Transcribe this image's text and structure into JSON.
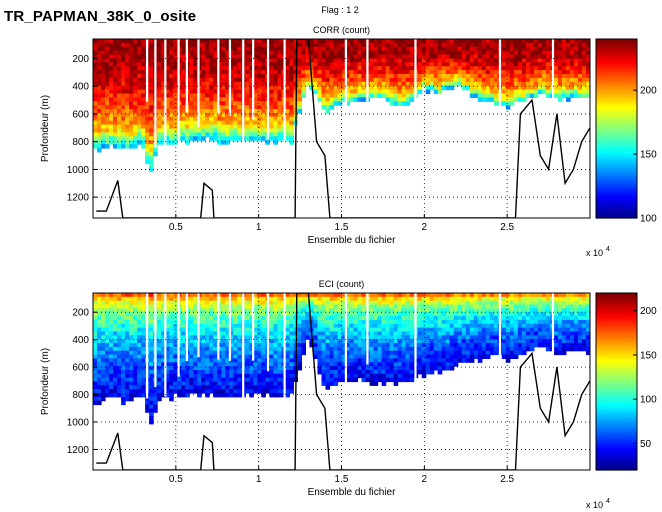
{
  "page": {
    "main_title": "TR_PAPMAN_38K_0_osite",
    "flag_label": "Flag : 1 2"
  },
  "chart_data": [
    {
      "type": "heatmap",
      "title": "CORR (count)",
      "xlabel": "Ensemble du fichier",
      "ylabel": "Profondeur (m)",
      "x_exponent_label": "x 10",
      "x_exponent": "4",
      "xlim": [
        0,
        30000
      ],
      "ylim": [
        1350,
        60
      ],
      "y_reversed": true,
      "xticks": [
        5000,
        10000,
        15000,
        20000,
        25000
      ],
      "xtick_labels": [
        "0.5",
        "1",
        "1.5",
        "2",
        "2.5"
      ],
      "yticks": [
        200,
        400,
        600,
        800,
        1000,
        1200
      ],
      "ytick_labels": [
        "200",
        "400",
        "600",
        "800",
        "1000",
        "1200"
      ],
      "grid": "dotted",
      "colorbar": {
        "colormap": "jet",
        "range": [
          100,
          240
        ],
        "ticks": [
          100,
          150,
          200
        ],
        "tick_labels": [
          "100",
          "150",
          "200"
        ]
      },
      "signal_bottom_m": [
        [
          0,
          870
        ],
        [
          1000,
          820
        ],
        [
          2000,
          840
        ],
        [
          3000,
          830
        ],
        [
          3500,
          1020
        ],
        [
          4000,
          830
        ],
        [
          5000,
          800
        ],
        [
          6000,
          780
        ],
        [
          7000,
          790
        ],
        [
          8000,
          800
        ],
        [
          9000,
          780
        ],
        [
          10000,
          790
        ],
        [
          11000,
          800
        ],
        [
          12000,
          790
        ],
        [
          13000,
          380
        ],
        [
          14000,
          600
        ],
        [
          15000,
          520
        ],
        [
          16000,
          500
        ],
        [
          17000,
          470
        ],
        [
          18000,
          520
        ],
        [
          19000,
          550
        ],
        [
          20000,
          420
        ],
        [
          21000,
          460
        ],
        [
          22000,
          380
        ],
        [
          23000,
          480
        ],
        [
          24000,
          520
        ],
        [
          25000,
          550
        ],
        [
          26000,
          500
        ],
        [
          27000,
          450
        ],
        [
          28000,
          500
        ],
        [
          29000,
          480
        ],
        [
          30000,
          500
        ]
      ],
      "seafloor_m": [
        [
          200,
          1300
        ],
        [
          800,
          1300
        ],
        [
          1500,
          1080
        ],
        [
          1800,
          1350
        ],
        [
          6500,
          1350
        ],
        [
          6700,
          1100
        ],
        [
          7200,
          1150
        ],
        [
          7300,
          1350
        ],
        [
          12200,
          1350
        ],
        [
          12300,
          60
        ],
        [
          13000,
          60
        ],
        [
          13500,
          800
        ],
        [
          14000,
          900
        ],
        [
          14300,
          1350
        ],
        [
          25500,
          1350
        ],
        [
          25800,
          600
        ],
        [
          26500,
          500
        ],
        [
          27000,
          900
        ],
        [
          27500,
          1000
        ],
        [
          28000,
          600
        ],
        [
          28500,
          1100
        ],
        [
          29000,
          1000
        ],
        [
          29500,
          800
        ],
        [
          30000,
          700
        ]
      ]
    },
    {
      "type": "heatmap",
      "title": "ECI (count)",
      "xlabel": "Ensemble du fichier",
      "ylabel": "Profondeur (m)",
      "x_exponent_label": "x 10",
      "x_exponent": "4",
      "xlim": [
        0,
        30000
      ],
      "ylim": [
        1350,
        60
      ],
      "y_reversed": true,
      "xticks": [
        5000,
        10000,
        15000,
        20000,
        25000
      ],
      "xtick_labels": [
        "0.5",
        "1",
        "1.5",
        "2",
        "2.5"
      ],
      "yticks": [
        200,
        400,
        600,
        800,
        1000,
        1200
      ],
      "ytick_labels": [
        "200",
        "400",
        "600",
        "800",
        "1000",
        "1200"
      ],
      "grid": "dotted",
      "colorbar": {
        "colormap": "jet",
        "range": [
          20,
          220
        ],
        "ticks": [
          50,
          100,
          150,
          200
        ],
        "tick_labels": [
          "50",
          "100",
          "150",
          "200"
        ]
      },
      "signal_bottom_m": [
        [
          0,
          870
        ],
        [
          1000,
          830
        ],
        [
          2000,
          850
        ],
        [
          3000,
          830
        ],
        [
          3500,
          1020
        ],
        [
          4000,
          830
        ],
        [
          5000,
          820
        ],
        [
          6000,
          800
        ],
        [
          7000,
          800
        ],
        [
          8000,
          810
        ],
        [
          9000,
          800
        ],
        [
          10000,
          800
        ],
        [
          11000,
          810
        ],
        [
          12000,
          800
        ],
        [
          13000,
          400
        ],
        [
          14000,
          750
        ],
        [
          15000,
          720
        ],
        [
          16000,
          700
        ],
        [
          17000,
          720
        ],
        [
          18000,
          700
        ],
        [
          19000,
          720
        ],
        [
          20000,
          650
        ],
        [
          21000,
          620
        ],
        [
          22000,
          600
        ],
        [
          23000,
          560
        ],
        [
          24000,
          520
        ],
        [
          25000,
          550
        ],
        [
          26000,
          500
        ],
        [
          27000,
          450
        ],
        [
          28000,
          500
        ],
        [
          29000,
          480
        ],
        [
          30000,
          500
        ]
      ],
      "seafloor_m": [
        [
          200,
          1300
        ],
        [
          800,
          1300
        ],
        [
          1500,
          1080
        ],
        [
          1800,
          1350
        ],
        [
          6500,
          1350
        ],
        [
          6700,
          1100
        ],
        [
          7200,
          1150
        ],
        [
          7300,
          1350
        ],
        [
          12200,
          1350
        ],
        [
          12300,
          60
        ],
        [
          13000,
          60
        ],
        [
          13500,
          800
        ],
        [
          14000,
          900
        ],
        [
          14300,
          1350
        ],
        [
          25500,
          1350
        ],
        [
          25800,
          600
        ],
        [
          26500,
          500
        ],
        [
          27000,
          900
        ],
        [
          27500,
          1000
        ],
        [
          28000,
          600
        ],
        [
          28500,
          1100
        ],
        [
          29000,
          1000
        ],
        [
          29500,
          800
        ],
        [
          30000,
          700
        ]
      ]
    }
  ]
}
